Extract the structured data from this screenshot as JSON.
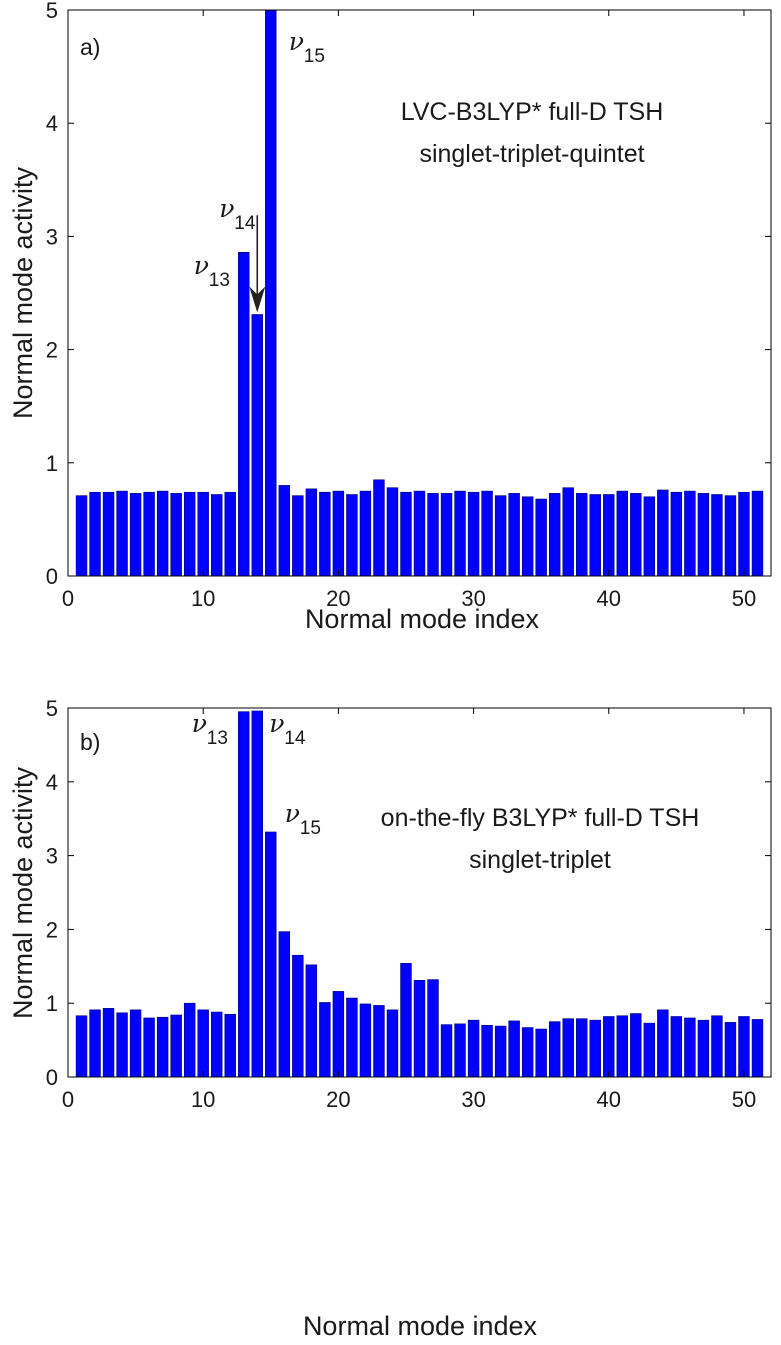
{
  "chart_data": [
    {
      "type": "bar",
      "panel_label": "a)",
      "title_lines": [
        "LVC-B3LYP* full-D TSH",
        "singlet-triplet-quintet"
      ],
      "xlabel": "Normal mode index",
      "ylabel": "Normal mode activity",
      "xlim": [
        0,
        52
      ],
      "ylim": [
        0,
        5
      ],
      "xticks": [
        0,
        10,
        20,
        30,
        40,
        50
      ],
      "yticks": [
        0,
        1,
        2,
        3,
        4,
        5
      ],
      "bar_color": "#0000ff",
      "x": [
        1,
        2,
        3,
        4,
        5,
        6,
        7,
        8,
        9,
        10,
        11,
        12,
        13,
        14,
        15,
        16,
        17,
        18,
        19,
        20,
        21,
        22,
        23,
        24,
        25,
        26,
        27,
        28,
        29,
        30,
        31,
        32,
        33,
        34,
        35,
        36,
        37,
        38,
        39,
        40,
        41,
        42,
        43,
        44,
        45,
        46,
        47,
        48,
        49,
        50,
        51
      ],
      "values": [
        0.71,
        0.74,
        0.74,
        0.75,
        0.73,
        0.74,
        0.75,
        0.73,
        0.74,
        0.74,
        0.72,
        0.74,
        2.86,
        2.31,
        5.0,
        0.8,
        0.71,
        0.77,
        0.74,
        0.75,
        0.72,
        0.75,
        0.85,
        0.78,
        0.74,
        0.75,
        0.73,
        0.73,
        0.75,
        0.74,
        0.75,
        0.71,
        0.73,
        0.7,
        0.68,
        0.73,
        0.78,
        0.73,
        0.72,
        0.72,
        0.75,
        0.73,
        0.7,
        0.76,
        0.74,
        0.75,
        0.73,
        0.72,
        0.71,
        0.74,
        0.75
      ],
      "annotations": [
        {
          "base": "ν",
          "sub": "13",
          "mode": 13
        },
        {
          "base": "ν",
          "sub": "14",
          "mode": 14,
          "arrow": true
        },
        {
          "base": "ν",
          "sub": "15",
          "mode": 15
        }
      ]
    },
    {
      "type": "bar",
      "panel_label": "b)",
      "title_lines": [
        "on-the-fly B3LYP* full-D TSH",
        "singlet-triplet"
      ],
      "xlabel": "Normal mode index",
      "ylabel": "Normal mode activity",
      "xlim": [
        0,
        52
      ],
      "ylim": [
        0,
        5
      ],
      "xticks": [
        0,
        10,
        20,
        30,
        40,
        50
      ],
      "yticks": [
        0,
        1,
        2,
        3,
        4,
        5
      ],
      "bar_color": "#0000ff",
      "x": [
        1,
        2,
        3,
        4,
        5,
        6,
        7,
        8,
        9,
        10,
        11,
        12,
        13,
        14,
        15,
        16,
        17,
        18,
        19,
        20,
        21,
        22,
        23,
        24,
        25,
        26,
        27,
        28,
        29,
        30,
        31,
        32,
        33,
        34,
        35,
        36,
        37,
        38,
        39,
        40,
        41,
        42,
        43,
        44,
        45,
        46,
        47,
        48,
        49,
        50,
        51
      ],
      "values": [
        0.83,
        0.91,
        0.93,
        0.87,
        0.91,
        0.8,
        0.81,
        0.84,
        1.0,
        0.91,
        0.88,
        0.85,
        4.95,
        4.96,
        3.32,
        1.97,
        1.65,
        1.52,
        1.01,
        1.16,
        1.07,
        0.99,
        0.97,
        0.91,
        1.54,
        1.31,
        1.32,
        0.71,
        0.72,
        0.77,
        0.7,
        0.69,
        0.76,
        0.67,
        0.65,
        0.75,
        0.79,
        0.79,
        0.77,
        0.82,
        0.83,
        0.86,
        0.73,
        0.91,
        0.82,
        0.8,
        0.77,
        0.83,
        0.74,
        0.82,
        0.78
      ],
      "annotations": [
        {
          "base": "ν",
          "sub": "13",
          "mode": 13
        },
        {
          "base": "ν",
          "sub": "14",
          "mode": 14
        },
        {
          "base": "ν",
          "sub": "15",
          "mode": 15
        }
      ]
    }
  ]
}
